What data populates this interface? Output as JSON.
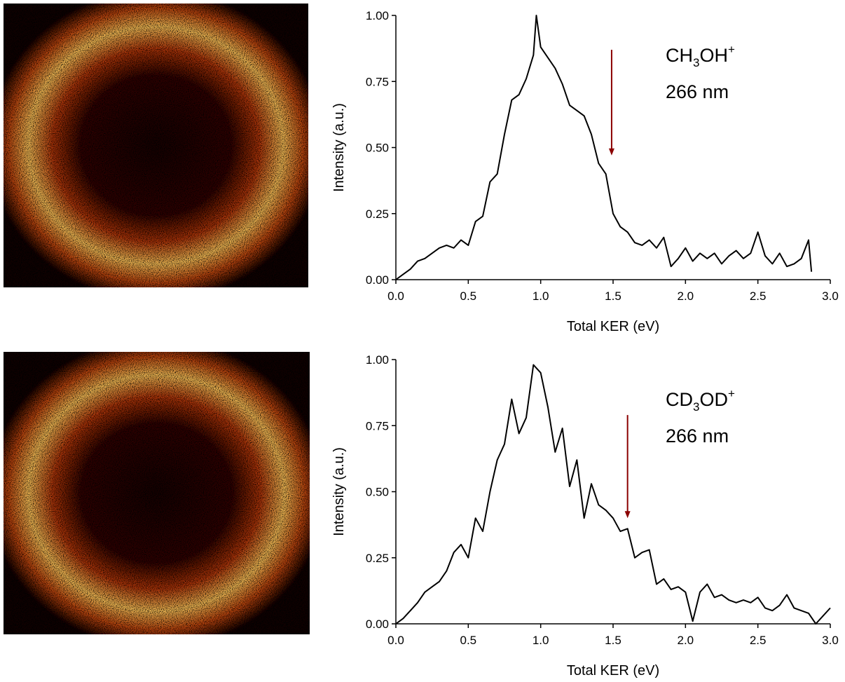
{
  "chart_data": [
    {
      "type": "line",
      "y_label": "Intensity (a.u.)",
      "x_label": "Total KER (eV)",
      "annotation": {
        "formula": [
          "CH",
          "3",
          "OH",
          "+"
        ],
        "text": "266 nm"
      },
      "arrow": {
        "x": 1.49,
        "y_start": 0.87,
        "y_end": 0.47,
        "color": "#8b0000"
      },
      "color": "#000000",
      "xlim": [
        0,
        3
      ],
      "ylim": [
        0,
        1
      ],
      "xticks": [
        {
          "value": 0,
          "label": "0.0"
        },
        {
          "value": 0.5,
          "label": "0.5"
        },
        {
          "value": 1,
          "label": "1.0"
        },
        {
          "value": 1.5,
          "label": "1.5"
        },
        {
          "value": 2,
          "label": "2.0"
        },
        {
          "value": 2.5,
          "label": "2.5"
        },
        {
          "value": 3,
          "label": "3.0"
        }
      ],
      "yticks": [
        {
          "value": 0,
          "label": "0.00"
        },
        {
          "value": 0.25,
          "label": "0.25"
        },
        {
          "value": 0.5,
          "label": "0.50"
        },
        {
          "value": 0.75,
          "label": "0.75"
        },
        {
          "value": 1,
          "label": "1.00"
        }
      ],
      "x": [
        0,
        0.05,
        0.1,
        0.15,
        0.2,
        0.25,
        0.3,
        0.35,
        0.4,
        0.45,
        0.5,
        0.55,
        0.6,
        0.65,
        0.7,
        0.75,
        0.8,
        0.85,
        0.9,
        0.95,
        0.97,
        1.0,
        1.05,
        1.1,
        1.15,
        1.2,
        1.25,
        1.3,
        1.35,
        1.4,
        1.45,
        1.5,
        1.55,
        1.6,
        1.65,
        1.7,
        1.75,
        1.8,
        1.85,
        1.9,
        1.95,
        2.0,
        2.05,
        2.1,
        2.15,
        2.2,
        2.25,
        2.3,
        2.35,
        2.4,
        2.45,
        2.5,
        2.55,
        2.6,
        2.65,
        2.7,
        2.75,
        2.8,
        2.85,
        2.87
      ],
      "values": [
        0,
        0.02,
        0.04,
        0.07,
        0.08,
        0.1,
        0.12,
        0.13,
        0.12,
        0.15,
        0.13,
        0.22,
        0.24,
        0.37,
        0.4,
        0.55,
        0.68,
        0.7,
        0.76,
        0.85,
        1.0,
        0.88,
        0.84,
        0.8,
        0.74,
        0.66,
        0.64,
        0.62,
        0.55,
        0.44,
        0.4,
        0.25,
        0.2,
        0.18,
        0.14,
        0.13,
        0.15,
        0.12,
        0.16,
        0.05,
        0.08,
        0.12,
        0.07,
        0.1,
        0.08,
        0.1,
        0.06,
        0.09,
        0.11,
        0.08,
        0.1,
        0.18,
        0.09,
        0.06,
        0.1,
        0.05,
        0.06,
        0.08,
        0.15,
        0.03
      ]
    },
    {
      "type": "line",
      "y_label": "Intensity (a.u.)",
      "x_label": "Total KER (eV)",
      "annotation": {
        "formula": [
          "CD",
          "3",
          "OD",
          "+"
        ],
        "text": "266 nm"
      },
      "arrow": {
        "x": 1.6,
        "y_start": 0.79,
        "y_end": 0.4,
        "color": "#8b0000"
      },
      "color": "#000000",
      "xlim": [
        0,
        3
      ],
      "ylim": [
        0,
        1
      ],
      "xticks": [
        {
          "value": 0,
          "label": "0.0"
        },
        {
          "value": 0.5,
          "label": "0.5"
        },
        {
          "value": 1,
          "label": "1.0"
        },
        {
          "value": 1.5,
          "label": "1.5"
        },
        {
          "value": 2,
          "label": "2.0"
        },
        {
          "value": 2.5,
          "label": "2.5"
        },
        {
          "value": 3,
          "label": "3.0"
        }
      ],
      "yticks": [
        {
          "value": 0,
          "label": "0.00"
        },
        {
          "value": 0.25,
          "label": "0.25"
        },
        {
          "value": 0.5,
          "label": "0.50"
        },
        {
          "value": 0.75,
          "label": "0.75"
        },
        {
          "value": 1,
          "label": "1.00"
        }
      ],
      "x": [
        0,
        0.05,
        0.1,
        0.15,
        0.2,
        0.25,
        0.3,
        0.35,
        0.4,
        0.45,
        0.5,
        0.55,
        0.6,
        0.65,
        0.7,
        0.75,
        0.8,
        0.85,
        0.9,
        0.95,
        1.0,
        1.05,
        1.1,
        1.15,
        1.2,
        1.25,
        1.3,
        1.35,
        1.4,
        1.45,
        1.5,
        1.55,
        1.6,
        1.65,
        1.7,
        1.75,
        1.8,
        1.85,
        1.9,
        1.95,
        2.0,
        2.05,
        2.1,
        2.15,
        2.2,
        2.25,
        2.3,
        2.35,
        2.4,
        2.45,
        2.5,
        2.55,
        2.6,
        2.65,
        2.7,
        2.75,
        2.8,
        2.85,
        2.9,
        2.95,
        3.0
      ],
      "values": [
        0,
        0.02,
        0.05,
        0.08,
        0.12,
        0.14,
        0.16,
        0.2,
        0.27,
        0.3,
        0.25,
        0.4,
        0.35,
        0.5,
        0.62,
        0.68,
        0.85,
        0.72,
        0.78,
        0.98,
        0.95,
        0.82,
        0.65,
        0.74,
        0.52,
        0.62,
        0.4,
        0.53,
        0.45,
        0.43,
        0.4,
        0.35,
        0.36,
        0.25,
        0.27,
        0.28,
        0.15,
        0.17,
        0.13,
        0.14,
        0.12,
        0.01,
        0.12,
        0.15,
        0.1,
        0.11,
        0.09,
        0.08,
        0.09,
        0.08,
        0.1,
        0.06,
        0.05,
        0.07,
        0.11,
        0.06,
        0.05,
        0.04,
        0,
        0.03,
        0.06
      ]
    }
  ]
}
